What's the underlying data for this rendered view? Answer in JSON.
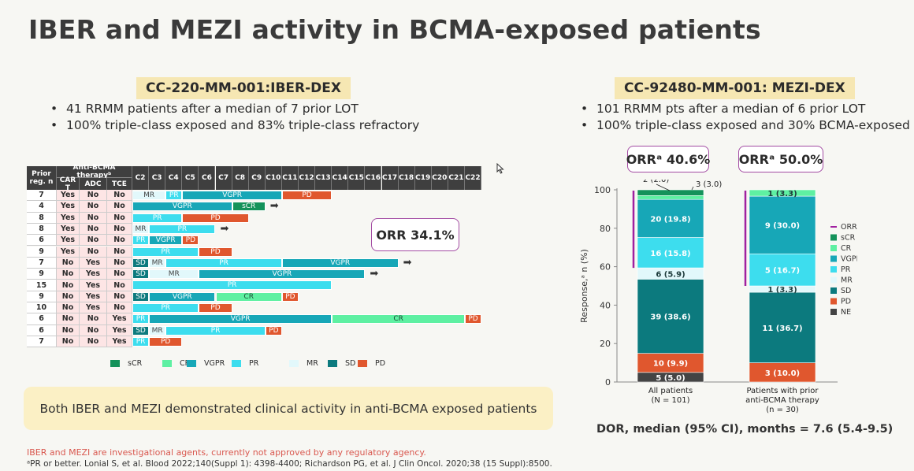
{
  "title": "IBER and MEZI activity in BCMA-exposed patients",
  "left": {
    "study": "CC-220-MM-001:IBER-DEX",
    "bullets": [
      "41 RRMM patients after a median of 7 prior LOT",
      "100% triple-class exposed and 83% triple-class refractory"
    ],
    "orr": "ORR 34.1%"
  },
  "right": {
    "study": "CC-92480-MM-001: MEZI-DEX",
    "bullets": [
      "101 RRMM pts after a median of 6 prior LOT",
      "100% triple-class exposed and 30% BCMA-exposed"
    ],
    "orr_all": "ORRᵃ 40.6%",
    "orr_bcma": "ORRᵃ 50.0%",
    "dor": "DOR, median (95% CI), months = 7.6 (5.4-9.5)"
  },
  "callout": "Both IBER and MEZI demonstrated clinical activity in anti-BCMA exposed patients",
  "footnote_warning": "IBER and MEZI are investigational agents, currently not approved by any regulatory agency.",
  "footnote_ref": "ᵃPR or better. Lonial S, et al. Blood 2022;140(Suppl 1): 4398-4400; Richardson PG, et al. J Clin Oncol. 2020;38 (15 Suppl):8500.",
  "colors": {
    "sCR": "#14925a",
    "CR": "#5ef0a2",
    "VGPR": "#17a7b7",
    "PR": "#3dddee",
    "MR": "#e2f8fb",
    "SD": "#0c7a7e",
    "PD": "#e0572e",
    "NE": "#444444",
    "ORR": "#a020a0"
  },
  "chart_data": [
    {
      "type": "table",
      "header": {
        "prior": "Prior reg. n",
        "anti": "Anti-BCMA therapyᵇ",
        "car": "CAR T",
        "adc": "ADC",
        "tce": "TCE"
      },
      "cycles": [
        "C2",
        "C3",
        "C4",
        "C5",
        "C6",
        "C7",
        "C8",
        "C9",
        "C10",
        "C11",
        "C12",
        "C13",
        "C14",
        "C15",
        "C16",
        "C17",
        "C18",
        "C19",
        "C20",
        "C21",
        "C22"
      ],
      "rows": [
        {
          "prior": "7",
          "car": "Yes",
          "adc": "No",
          "tce": "No",
          "segments": [
            [
              "MR",
              0,
              2
            ],
            [
              "PR",
              2,
              3
            ],
            [
              "VGPR",
              3,
              9
            ],
            [
              "PD",
              9,
              12
            ]
          ],
          "ongoing": false
        },
        {
          "prior": "4",
          "car": "Yes",
          "adc": "No",
          "tce": "No",
          "segments": [
            [
              "VGPR",
              0,
              6
            ],
            [
              "sCR",
              6,
              8
            ]
          ],
          "ongoing": true
        },
        {
          "prior": "8",
          "car": "Yes",
          "adc": "No",
          "tce": "No",
          "segments": [
            [
              "PR",
              0,
              3
            ],
            [
              "PD",
              3,
              7
            ]
          ],
          "ongoing": false
        },
        {
          "prior": "8",
          "car": "Yes",
          "adc": "No",
          "tce": "No",
          "segments": [
            [
              "MR",
              0,
              1
            ],
            [
              "PR",
              1,
              5
            ]
          ],
          "ongoing": true
        },
        {
          "prior": "6",
          "car": "Yes",
          "adc": "No",
          "tce": "No",
          "segments": [
            [
              "PR",
              0,
              1
            ],
            [
              "VGPR",
              1,
              3
            ],
            [
              "PD",
              3,
              4
            ]
          ],
          "ongoing": false
        },
        {
          "prior": "9",
          "car": "Yes",
          "adc": "No",
          "tce": "No",
          "segments": [
            [
              "PR",
              0,
              4
            ],
            [
              "PD",
              4,
              6
            ]
          ],
          "ongoing": false
        },
        {
          "prior": "7",
          "car": "No",
          "adc": "Yes",
          "tce": "No",
          "segments": [
            [
              "SD",
              0,
              1
            ],
            [
              "MR",
              1,
              2
            ],
            [
              "PR",
              2,
              9
            ],
            [
              "VGPR",
              9,
              16
            ]
          ],
          "ongoing": true
        },
        {
          "prior": "9",
          "car": "No",
          "adc": "Yes",
          "tce": "No",
          "segments": [
            [
              "SD",
              0,
              1
            ],
            [
              "MR",
              1,
              4
            ],
            [
              "VGPR",
              4,
              14
            ]
          ],
          "ongoing": true
        },
        {
          "prior": "15",
          "car": "No",
          "adc": "Yes",
          "tce": "No",
          "segments": [
            [
              "PR",
              0,
              12
            ]
          ],
          "ongoing": false
        },
        {
          "prior": "9",
          "car": "No",
          "adc": "Yes",
          "tce": "No",
          "segments": [
            [
              "SD",
              0,
              1
            ],
            [
              "VGPR",
              1,
              5
            ],
            [
              "CR",
              5,
              9
            ],
            [
              "PD",
              9,
              10
            ]
          ],
          "ongoing": false
        },
        {
          "prior": "10",
          "car": "No",
          "adc": "Yes",
          "tce": "No",
          "segments": [
            [
              "PR",
              0,
              4
            ],
            [
              "PD",
              4,
              6
            ]
          ],
          "ongoing": false
        },
        {
          "prior": "6",
          "car": "No",
          "adc": "No",
          "tce": "Yes",
          "segments": [
            [
              "PR",
              0,
              1
            ],
            [
              "VGPR",
              1,
              12
            ],
            [
              "CR",
              12,
              20
            ],
            [
              "PD",
              20,
              21
            ]
          ],
          "ongoing": false
        },
        {
          "prior": "6",
          "car": "No",
          "adc": "No",
          "tce": "Yes",
          "segments": [
            [
              "SD",
              0,
              1
            ],
            [
              "MR",
              1,
              2
            ],
            [
              "PR",
              2,
              8
            ],
            [
              "PD",
              8,
              9
            ]
          ],
          "ongoing": false
        },
        {
          "prior": "7",
          "car": "No",
          "adc": "No",
          "tce": "Yes",
          "segments": [
            [
              "PR",
              0,
              1
            ],
            [
              "PD",
              1,
              3
            ]
          ],
          "ongoing": false
        }
      ],
      "legend": [
        "sCR",
        "CR",
        "VGPR",
        "PR",
        "MR",
        "SD",
        "PD"
      ]
    },
    {
      "type": "bar",
      "stacked": true,
      "ylabel": "Response,ᵃ n (%)",
      "ylim": [
        0,
        100
      ],
      "yticks": [
        0,
        20,
        40,
        60,
        80,
        100
      ],
      "categories": [
        "All patients\n(N = 101)",
        "Patients with prior\nanti-BCMA therapy\n(n = 30)"
      ],
      "series": [
        {
          "name": "NE",
          "values": [
            5.0,
            0
          ],
          "labels": [
            "5 (5.0)",
            ""
          ]
        },
        {
          "name": "PD",
          "values": [
            9.9,
            10.0
          ],
          "labels": [
            "10 (9.9)",
            "3 (10.0)"
          ]
        },
        {
          "name": "SD",
          "values": [
            38.6,
            36.7
          ],
          "labels": [
            "39 (38.6)",
            "11 (36.7)"
          ]
        },
        {
          "name": "MR",
          "values": [
            5.9,
            3.3
          ],
          "labels": [
            "6 (5.9)",
            "1 (3.3)"
          ]
        },
        {
          "name": "PR",
          "values": [
            15.8,
            16.7
          ],
          "labels": [
            "16 (15.8)",
            "5 (16.7)"
          ]
        },
        {
          "name": "VGPR",
          "values": [
            19.8,
            30.0
          ],
          "labels": [
            "20 (19.8)",
            "9 (30.0)"
          ]
        },
        {
          "name": "CR",
          "values": [
            2.0,
            3.3
          ],
          "labels": [
            "2 (2.0)",
            "1 (3.3)"
          ]
        },
        {
          "name": "sCR",
          "values": [
            3.0,
            0
          ],
          "labels": [
            "3 (3.0)",
            ""
          ]
        }
      ],
      "legend": [
        "ORR",
        "sCR",
        "CR",
        "VGPR",
        "PR",
        "MR",
        "SD",
        "PD",
        "NE"
      ]
    }
  ]
}
